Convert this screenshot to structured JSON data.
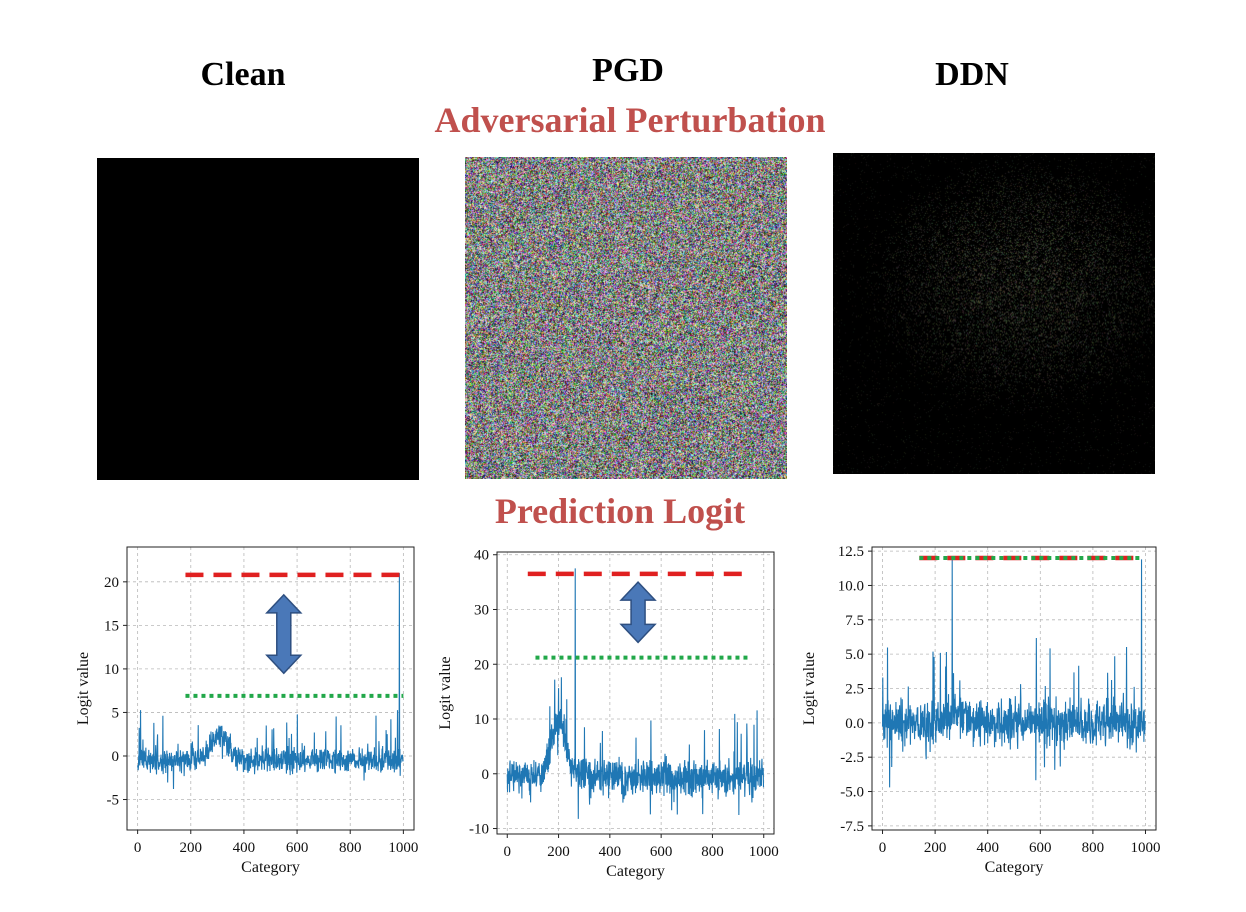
{
  "columns": {
    "clean": "Clean",
    "pgd": "PGD",
    "ddn": "DDN"
  },
  "sections": {
    "perturbation": "Adversarial Perturbation",
    "logit": "Prediction Logit",
    "accent_color": "#c0504d"
  },
  "perturbation_images": {
    "clean": "black",
    "pgd": "dense random color noise",
    "ddn": "sparse faint noise on black"
  },
  "chart_data": [
    {
      "type": "line",
      "name": "Clean",
      "xlabel": "Category",
      "ylabel": "Logit value",
      "xlim": [
        -40,
        1040
      ],
      "ylim": [
        -8.5,
        24
      ],
      "xticks": [
        0,
        200,
        400,
        600,
        800,
        1000
      ],
      "yticks": [
        -5,
        0,
        5,
        10,
        15,
        20
      ],
      "ytick_labels": [
        "-5",
        "0",
        "5",
        "10",
        "15",
        "20"
      ],
      "grid": true,
      "series_color": "#1f77b4",
      "signal": {
        "n": 1000,
        "base": -0.5,
        "noise": 1.4,
        "bump_center": 310,
        "bump_height": 3,
        "spike_index": 985,
        "spike_value": 21
      },
      "lines": [
        {
          "style": "dashed",
          "color": "#e02020",
          "y": 20.8,
          "x": [
            180,
            1000
          ]
        },
        {
          "style": "dotted",
          "color": "#22a84a",
          "y": 6.9,
          "x": [
            180,
            1000
          ]
        }
      ],
      "arrow": {
        "x": 550,
        "y_top": 18.5,
        "y_bottom": 9.5
      }
    },
    {
      "type": "line",
      "name": "PGD",
      "xlabel": "Category",
      "ylabel": "Logit value",
      "xlim": [
        -40,
        1040
      ],
      "ylim": [
        -11,
        40.5
      ],
      "xticks": [
        0,
        200,
        400,
        600,
        800,
        1000
      ],
      "yticks": [
        -10,
        0,
        10,
        20,
        30,
        40
      ],
      "ytick_labels": [
        "-10",
        "0",
        "10",
        "20",
        "30",
        "40"
      ],
      "grid": true,
      "series_color": "#1f77b4",
      "signal": {
        "n": 1000,
        "base": -0.5,
        "noise": 3.2,
        "bump_center": 200,
        "bump_height": 9,
        "spike_index": 265,
        "spike_value": 37.5
      },
      "lines": [
        {
          "style": "dashed",
          "color": "#e02020",
          "y": 36.5,
          "x": [
            80,
            930
          ]
        },
        {
          "style": "dotted",
          "color": "#22a84a",
          "y": 21.2,
          "x": [
            110,
            940
          ]
        }
      ],
      "arrow": {
        "x": 510,
        "y_top": 35,
        "y_bottom": 24
      }
    },
    {
      "type": "line",
      "name": "DDN",
      "xlabel": "Category",
      "ylabel": "Logit value",
      "xlim": [
        -40,
        1040
      ],
      "ylim": [
        -7.8,
        12.8
      ],
      "xticks": [
        0,
        200,
        400,
        600,
        800,
        1000
      ],
      "yticks": [
        -7.5,
        -5.0,
        -2.5,
        0.0,
        2.5,
        5.0,
        7.5,
        10.0,
        12.5
      ],
      "ytick_labels": [
        "-7.5",
        "-5.0",
        "-2.5",
        "0.0",
        "2.5",
        "5.0",
        "7.5",
        "10.0",
        "12.5"
      ],
      "grid": true,
      "series_color": "#1f77b4",
      "signal": {
        "n": 1000,
        "base": 0,
        "noise": 1.6,
        "bump_center": 280,
        "bump_height": 0.8,
        "spike_index": 265,
        "spike_value": 11.9,
        "spike2_index": 985,
        "spike2_value": 11.9
      },
      "lines": [
        {
          "style": "dashed",
          "color": "#e02020",
          "y": 12.0,
          "x": [
            140,
            985
          ]
        },
        {
          "style": "dotted",
          "color": "#22a84a",
          "y": 12.0,
          "x": [
            140,
            985
          ]
        }
      ]
    }
  ]
}
